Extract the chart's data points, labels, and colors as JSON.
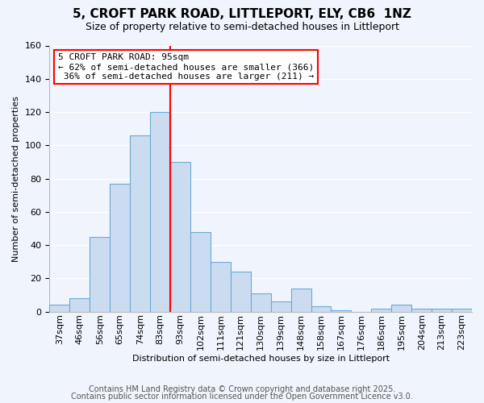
{
  "title": "5, CROFT PARK ROAD, LITTLEPORT, ELY, CB6  1NZ",
  "subtitle": "Size of property relative to semi-detached houses in Littleport",
  "xlabel": "Distribution of semi-detached houses by size in Littleport",
  "ylabel": "Number of semi-detached properties",
  "footer_line1": "Contains HM Land Registry data © Crown copyright and database right 2025.",
  "footer_line2": "Contains public sector information licensed under the Open Government Licence v3.0.",
  "categories": [
    "37sqm",
    "46sqm",
    "56sqm",
    "65sqm",
    "74sqm",
    "83sqm",
    "93sqm",
    "102sqm",
    "111sqm",
    "121sqm",
    "130sqm",
    "139sqm",
    "148sqm",
    "158sqm",
    "167sqm",
    "176sqm",
    "186sqm",
    "195sqm",
    "204sqm",
    "213sqm",
    "223sqm"
  ],
  "values": [
    4,
    8,
    45,
    77,
    106,
    120,
    90,
    48,
    30,
    24,
    11,
    6,
    14,
    3,
    1,
    0,
    2,
    4,
    2,
    2,
    2
  ],
  "bar_color": "#ccdcf0",
  "bar_edge_color": "#6aaad4",
  "red_line_index": 6,
  "property_label": "5 CROFT PARK ROAD: 95sqm",
  "pct_smaller": 62,
  "count_smaller": 366,
  "pct_larger": 36,
  "count_larger": 211,
  "ylim": [
    0,
    160
  ],
  "yticks": [
    0,
    20,
    40,
    60,
    80,
    100,
    120,
    140,
    160
  ],
  "bg_color": "#f0f4fc",
  "grid_color": "#ffffff",
  "title_fontsize": 11,
  "subtitle_fontsize": 9,
  "xlabel_fontsize": 8,
  "ylabel_fontsize": 8,
  "tick_fontsize": 8,
  "footer_fontsize": 7,
  "ann_fontsize": 8
}
